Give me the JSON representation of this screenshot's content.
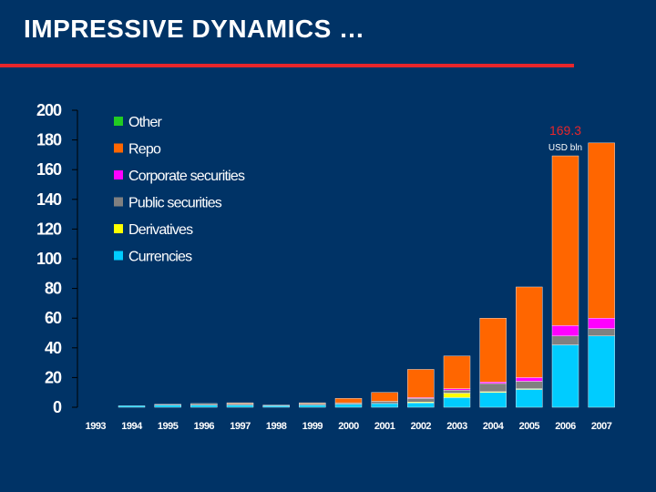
{
  "slide": {
    "title": "IMPRESSIVE DYNAMICS …"
  },
  "colors": {
    "background": "#003366",
    "accent_rule": "#e8262b",
    "Other": "#22cc22",
    "Repo": "#ff6600",
    "Corporate securities": "#ff00ff",
    "Public securities": "#808080",
    "Derivatives": "#ffff00",
    "Currencies": "#00ccff"
  },
  "chart_data": {
    "type": "bar",
    "stacked": true,
    "grid": false,
    "legend_position": "top-left",
    "categories": [
      "1993",
      "1994",
      "1995",
      "1996",
      "1997",
      "1998",
      "1999",
      "2000",
      "2001",
      "2002",
      "2003",
      "2004",
      "2005",
      "2006",
      "2007"
    ],
    "ylim": [
      0,
      200
    ],
    "yticks": [
      0,
      20,
      40,
      60,
      80,
      100,
      120,
      140,
      160,
      180,
      200
    ],
    "series": [
      {
        "name": "Currencies",
        "values": [
          0,
          1.0,
          1.5,
          1.5,
          1.5,
          1.0,
          1.5,
          2.0,
          2.5,
          3.0,
          6.5,
          10.0,
          12.0,
          42.0,
          48.0
        ]
      },
      {
        "name": "Derivatives",
        "values": [
          0,
          0,
          0,
          0,
          0,
          0,
          0,
          0,
          0,
          0.5,
          3.0,
          0.5,
          0.5,
          0,
          0
        ]
      },
      {
        "name": "Public securities",
        "values": [
          0,
          0,
          0.5,
          1.0,
          1.0,
          0.5,
          1.0,
          1.0,
          1.5,
          2.5,
          2.0,
          5.5,
          5.0,
          6.0,
          5.0
        ]
      },
      {
        "name": "Corporate securities",
        "values": [
          0,
          0,
          0,
          0,
          0,
          0,
          0,
          0,
          0,
          0.5,
          1.0,
          1.0,
          2.5,
          7.0,
          7.0
        ]
      },
      {
        "name": "Repo",
        "values": [
          0,
          0,
          0,
          0,
          0.5,
          0,
          0.5,
          3.0,
          6.0,
          19.0,
          22.0,
          43.0,
          61.0,
          114.3,
          118.0
        ]
      },
      {
        "name": "Other",
        "values": [
          0,
          0,
          0,
          0,
          0,
          0,
          0,
          0,
          0,
          0,
          0,
          0,
          0,
          0,
          0
        ]
      }
    ],
    "legend_order": [
      "Other",
      "Repo",
      "Corporate securities",
      "Public securities",
      "Derivatives",
      "Currencies"
    ],
    "annotation": {
      "category": "2006",
      "value_label": "169.3",
      "unit_label": "USD bln"
    }
  }
}
